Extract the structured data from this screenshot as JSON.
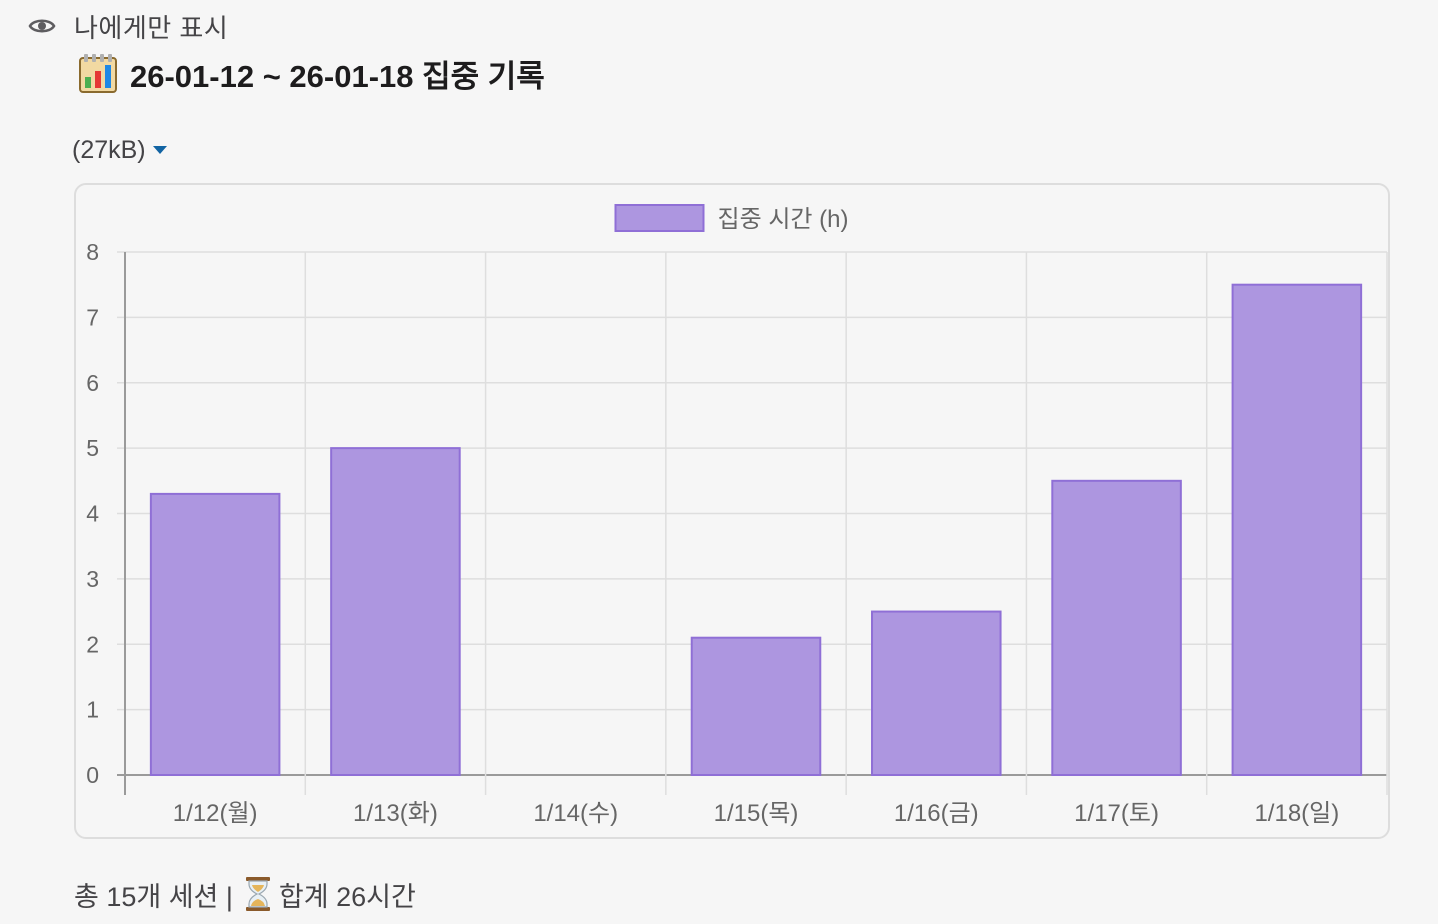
{
  "visibility": {
    "label": "나에게만 표시",
    "icon": "eye-icon"
  },
  "message": {
    "title_icon": "bar-chart-icon",
    "title": "26-01-12 ~ 26-01-18 집중 기록",
    "attachment_size": "(27kB)",
    "summary_prefix": "총 15개 세션 |",
    "summary_icon": "hourglass-icon",
    "summary_suffix": "합계 26시간"
  },
  "chart_data": {
    "type": "bar",
    "categories": [
      "1/12(월)",
      "1/13(화)",
      "1/14(수)",
      "1/15(목)",
      "1/16(금)",
      "1/17(토)",
      "1/18(일)"
    ],
    "series": [
      {
        "name": "집중 시간 (h)",
        "values": [
          4.3,
          5.0,
          0,
          2.1,
          2.5,
          4.5,
          7.5
        ]
      }
    ],
    "ylim": [
      0,
      8
    ],
    "yticks": [
      0,
      1,
      2,
      3,
      4,
      5,
      6,
      7,
      8
    ],
    "grid": true,
    "legend_position": "top",
    "colors": {
      "bar_fill": "#ad96e0",
      "bar_border": "#8f6fd6",
      "grid": "#dedede",
      "axis": "#9a9a9a",
      "tick_text": "#666666"
    }
  }
}
